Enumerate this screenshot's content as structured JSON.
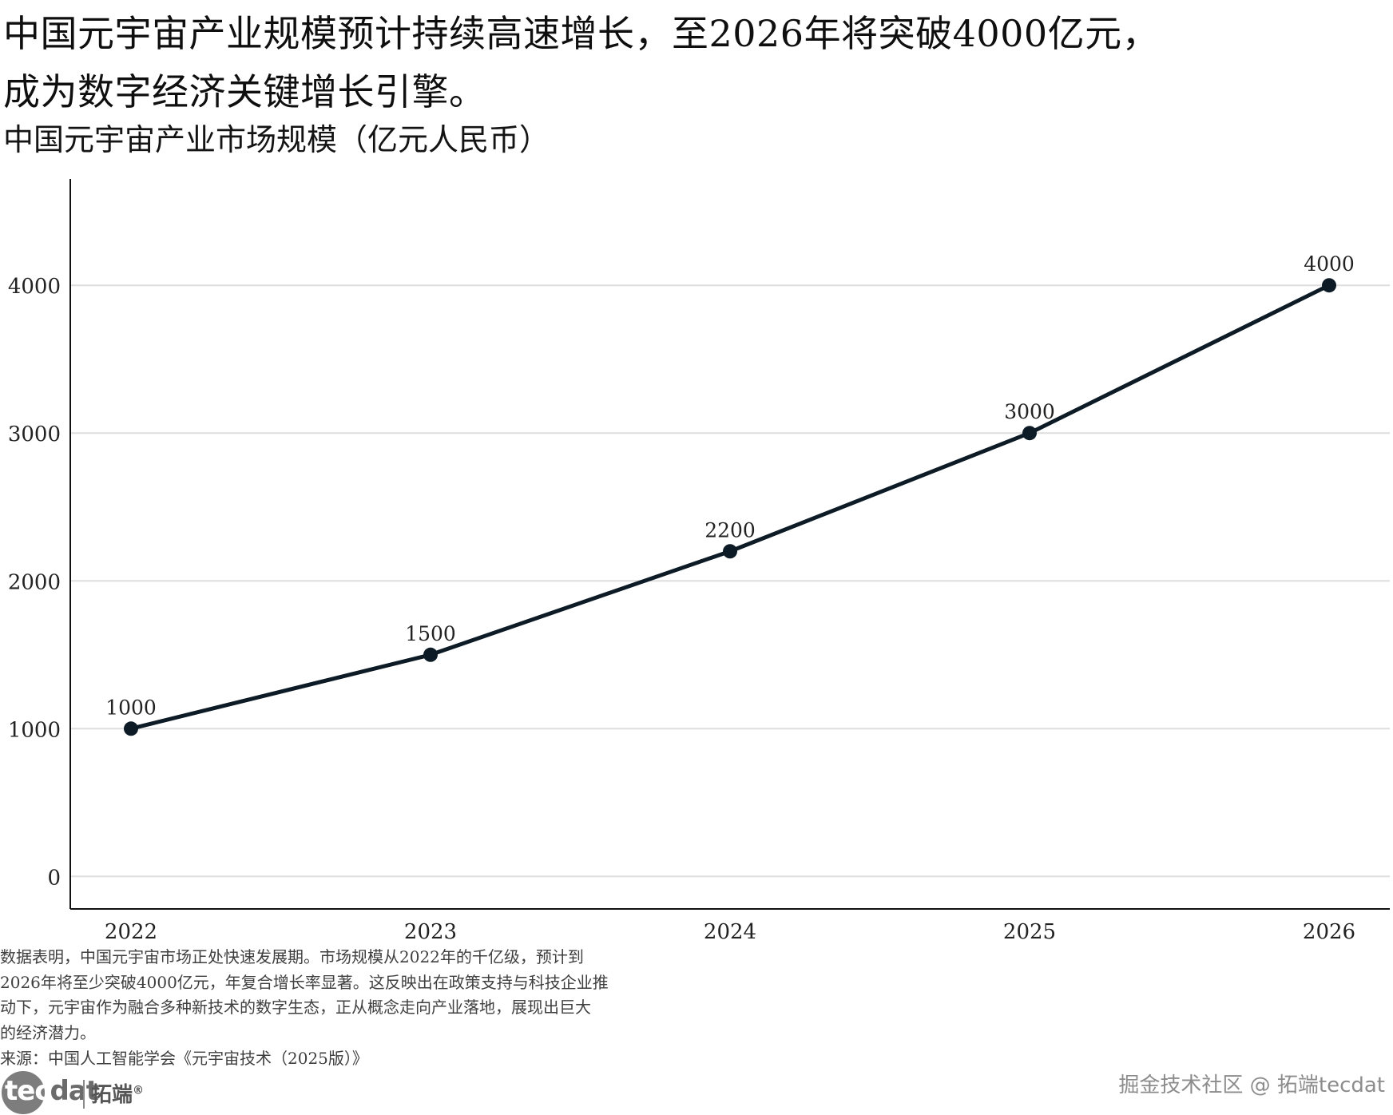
{
  "headline": {
    "line1": "中国元宇宙产业规模预计持续高速增长，至2026年将突破4000亿元，",
    "line2": "成为数字经济关键增长引擎。"
  },
  "subtitle": "中国元宇宙产业市场规模（亿元人民币）",
  "chart_data": {
    "type": "line",
    "title": "中国元宇宙产业市场规模（亿元人民币）",
    "categories": [
      "2022",
      "2023",
      "2024",
      "2025",
      "2026"
    ],
    "series": [
      {
        "values": [
          1000,
          1500,
          2200,
          3000,
          4000
        ]
      }
    ],
    "data_labels": [
      "1000",
      "1500",
      "2200",
      "3000",
      "4000"
    ],
    "y_ticks": [
      "0",
      "1000",
      "2000",
      "3000",
      "4000"
    ],
    "ylim": [
      -220,
      4720
    ],
    "grid": "horizontal",
    "line_color": "#0d1b26",
    "xlabel": "",
    "ylabel": ""
  },
  "caption": {
    "line1": "数据表明，中国元宇宙市场正处快速发展期。市场规模从2022年的千亿级，预计到",
    "line2": "2026年将至少突破4000亿元，年复合增长率显著。这反映出在政策支持与科技企业推",
    "line3": "动下，元宇宙作为融合多种新技术的数字生态，正从概念走向产业落地，展现出巨大",
    "line4": "的经济潜力。"
  },
  "source": "来源：中国人工智能学会《元宇宙技术（2025版）》",
  "logo": {
    "word_a": "tec",
    "word_b": "dat",
    "cn": "拓端",
    "mark": "®"
  },
  "watermark": "掘金技术社区 @ 拓端tecdat"
}
